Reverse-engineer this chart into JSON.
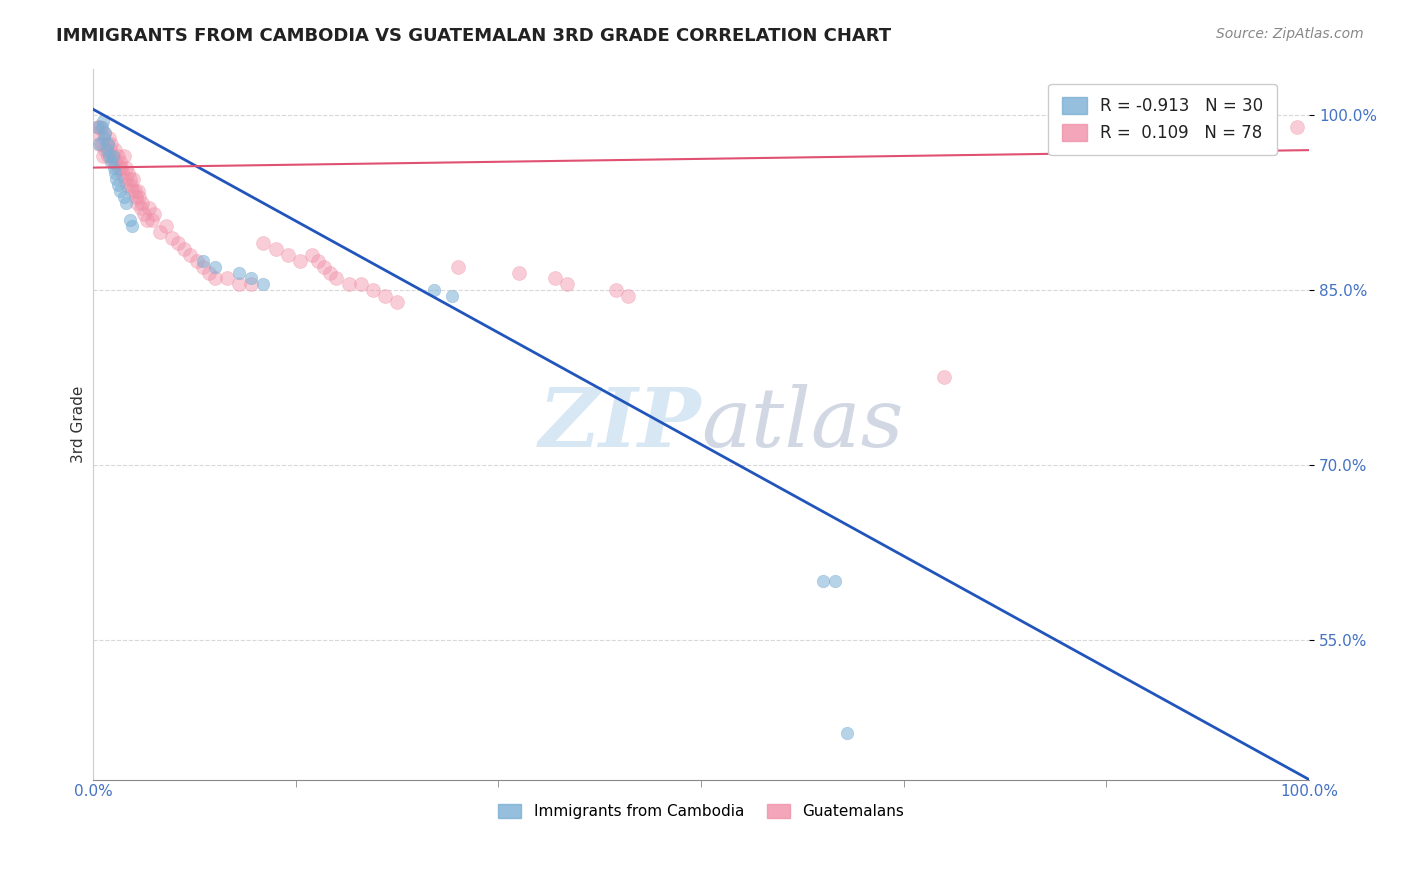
{
  "title": "IMMIGRANTS FROM CAMBODIA VS GUATEMALAN 3RD GRADE CORRELATION CHART",
  "source": "Source: ZipAtlas.com",
  "ylabel": "3rd Grade",
  "yticks": [
    0.55,
    0.7,
    0.85,
    1.0
  ],
  "ytick_labels": [
    "55.0%",
    "70.0%",
    "85.0%",
    "100.0%"
  ],
  "xlim": [
    0.0,
    1.0
  ],
  "ylim": [
    0.43,
    1.04
  ],
  "legend_upper": [
    {
      "label": "R = -0.913   N = 30",
      "color": "#a8c4e0"
    },
    {
      "label": "R =  0.109   N = 78",
      "color": "#f4a0b8"
    }
  ],
  "legend_bottom": [
    {
      "label": "Immigrants from Cambodia",
      "color": "#a8c4e0"
    },
    {
      "label": "Guatemalans",
      "color": "#f4a0b8"
    }
  ],
  "cambodia_x": [
    0.003,
    0.005,
    0.007,
    0.008,
    0.009,
    0.01,
    0.011,
    0.012,
    0.013,
    0.015,
    0.016,
    0.017,
    0.018,
    0.019,
    0.02,
    0.022,
    0.025,
    0.027,
    0.03,
    0.032,
    0.09,
    0.1,
    0.12,
    0.13,
    0.14,
    0.28,
    0.295,
    0.6,
    0.61,
    0.62
  ],
  "cambodia_y": [
    0.99,
    0.975,
    0.99,
    0.995,
    0.98,
    0.985,
    0.97,
    0.975,
    0.965,
    0.96,
    0.965,
    0.955,
    0.95,
    0.945,
    0.94,
    0.935,
    0.93,
    0.925,
    0.91,
    0.905,
    0.875,
    0.87,
    0.865,
    0.86,
    0.855,
    0.85,
    0.845,
    0.6,
    0.6,
    0.47
  ],
  "guatemalan_x": [
    0.002,
    0.004,
    0.005,
    0.006,
    0.007,
    0.008,
    0.009,
    0.01,
    0.011,
    0.012,
    0.013,
    0.014,
    0.015,
    0.016,
    0.017,
    0.018,
    0.019,
    0.02,
    0.021,
    0.022,
    0.023,
    0.024,
    0.025,
    0.026,
    0.027,
    0.028,
    0.029,
    0.03,
    0.031,
    0.032,
    0.033,
    0.034,
    0.035,
    0.036,
    0.037,
    0.038,
    0.039,
    0.04,
    0.042,
    0.044,
    0.046,
    0.048,
    0.05,
    0.055,
    0.06,
    0.065,
    0.07,
    0.075,
    0.08,
    0.085,
    0.09,
    0.095,
    0.1,
    0.11,
    0.12,
    0.13,
    0.14,
    0.15,
    0.16,
    0.17,
    0.18,
    0.185,
    0.19,
    0.195,
    0.2,
    0.21,
    0.22,
    0.23,
    0.24,
    0.25,
    0.3,
    0.35,
    0.38,
    0.39,
    0.43,
    0.44,
    0.99,
    0.7
  ],
  "guatemalan_y": [
    0.985,
    0.99,
    0.975,
    0.99,
    0.975,
    0.965,
    0.985,
    0.97,
    0.975,
    0.965,
    0.98,
    0.97,
    0.975,
    0.965,
    0.96,
    0.97,
    0.96,
    0.965,
    0.955,
    0.96,
    0.955,
    0.95,
    0.965,
    0.945,
    0.955,
    0.94,
    0.95,
    0.945,
    0.94,
    0.935,
    0.945,
    0.935,
    0.93,
    0.925,
    0.935,
    0.93,
    0.92,
    0.925,
    0.915,
    0.91,
    0.92,
    0.91,
    0.915,
    0.9,
    0.905,
    0.895,
    0.89,
    0.885,
    0.88,
    0.875,
    0.87,
    0.865,
    0.86,
    0.86,
    0.855,
    0.855,
    0.89,
    0.885,
    0.88,
    0.875,
    0.88,
    0.875,
    0.87,
    0.865,
    0.86,
    0.855,
    0.855,
    0.85,
    0.845,
    0.84,
    0.87,
    0.865,
    0.86,
    0.855,
    0.85,
    0.845,
    0.99,
    0.775
  ],
  "blue_line_x": [
    0.0,
    1.0
  ],
  "blue_line_y": [
    1.005,
    0.43
  ],
  "pink_line_x": [
    0.0,
    1.0
  ],
  "pink_line_y": [
    0.955,
    0.97
  ],
  "watermark_zip": "ZIP",
  "watermark_atlas": "atlas",
  "cam_color": "#7bafd4",
  "cam_alpha": 0.55,
  "cam_size": 80,
  "guat_color": "#f090a8",
  "guat_alpha": 0.45,
  "guat_size": 100,
  "blue_line_color": "#2255bb",
  "pink_line_color": "#e05070",
  "grid_color": "#c8c8c8",
  "background": "#ffffff",
  "title_color": "#222222",
  "source_color": "#888888",
  "axis_color": "#4472c4"
}
